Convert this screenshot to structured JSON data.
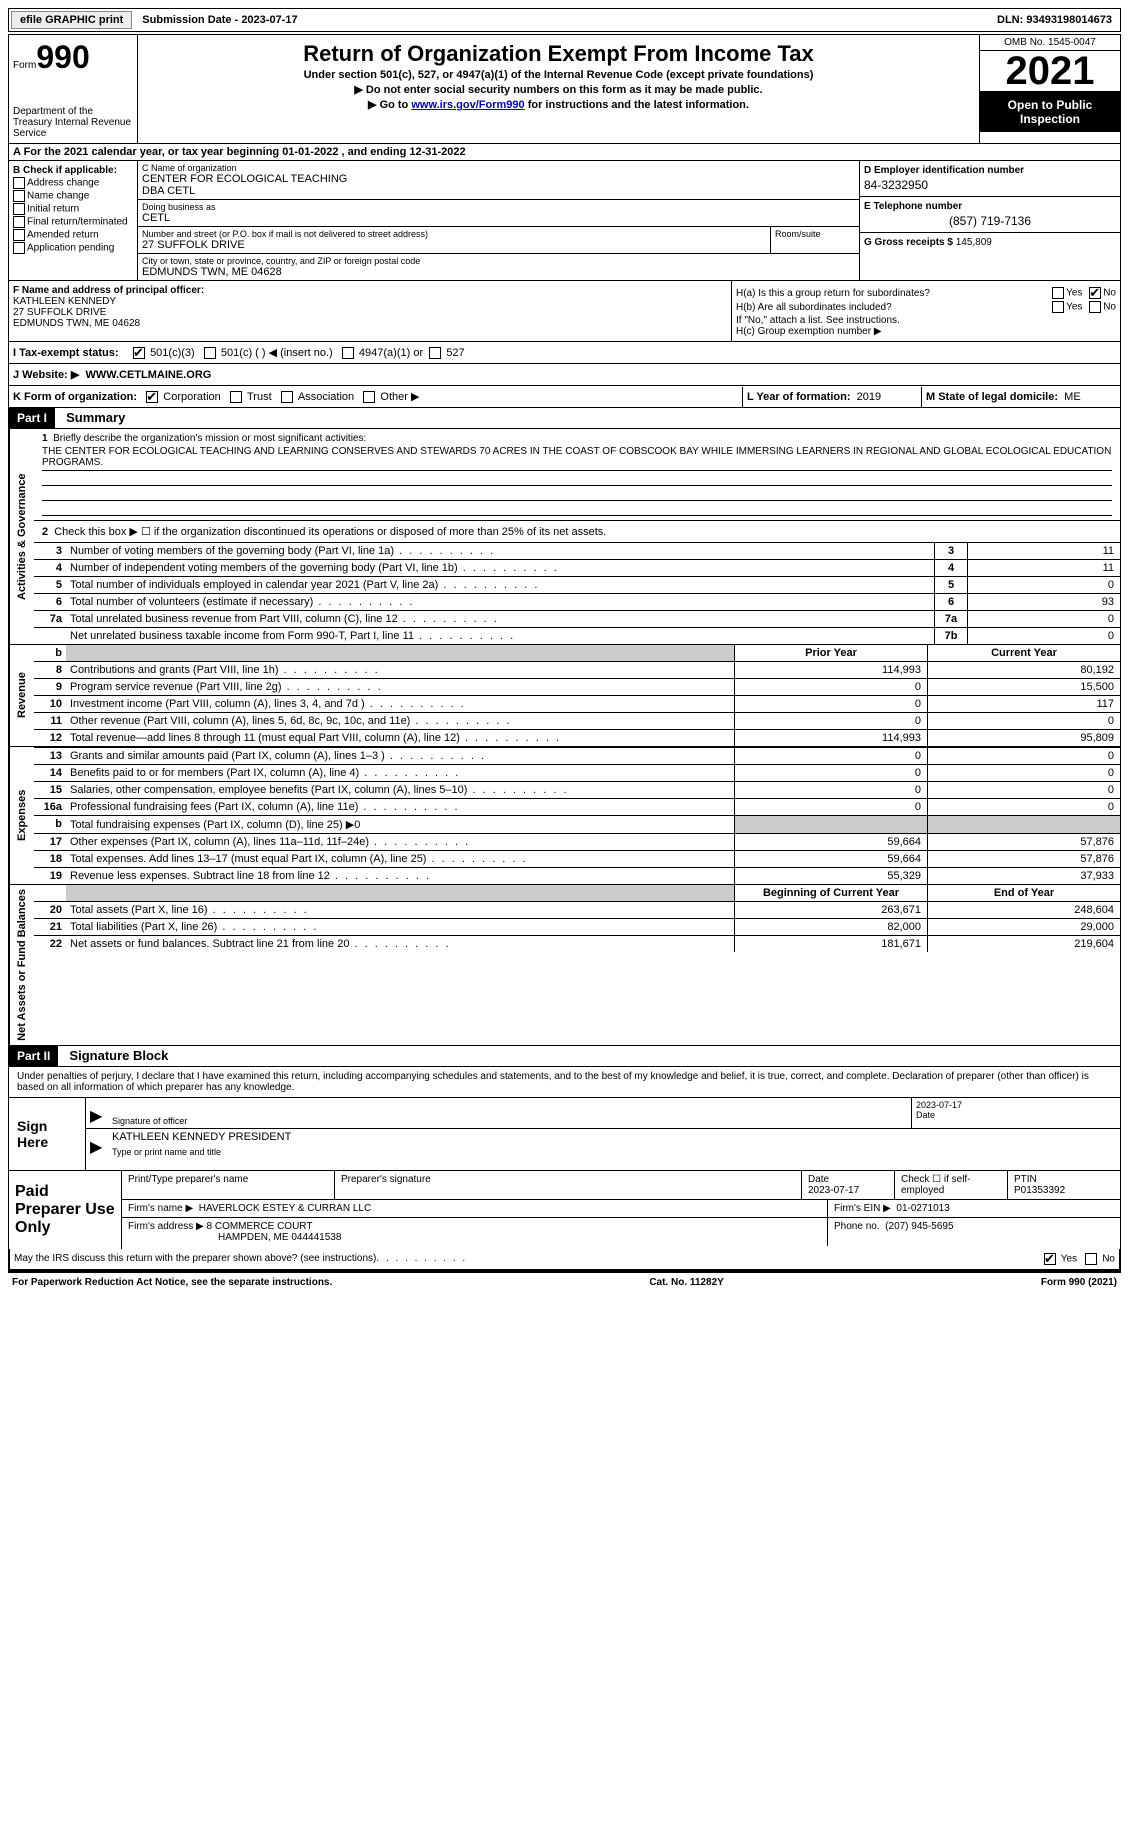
{
  "top": {
    "efile_label": "efile GRAPHIC print",
    "submission_label": "Submission Date - 2023-07-17",
    "dln_label": "DLN: 93493198014673"
  },
  "header": {
    "form_label": "Form",
    "form_number": "990",
    "dept": "Department of the Treasury Internal Revenue Service",
    "title": "Return of Organization Exempt From Income Tax",
    "sub1": "Under section 501(c), 527, or 4947(a)(1) of the Internal Revenue Code (except private foundations)",
    "sub2": "▶ Do not enter social security numbers on this form as it may be made public.",
    "sub3_pre": "▶ Go to ",
    "sub3_link": "www.irs.gov/Form990",
    "sub3_post": " for instructions and the latest information.",
    "omb": "OMB No. 1545-0047",
    "year": "2021",
    "open_insp": "Open to Public Inspection"
  },
  "rowA": "A For the 2021 calendar year, or tax year beginning 01-01-2022   , and ending 12-31-2022",
  "sectionB": {
    "label": "B Check if applicable:",
    "items": [
      "Address change",
      "Name change",
      "Initial return",
      "Final return/terminated",
      "Amended return",
      "Application pending"
    ]
  },
  "sectionC": {
    "name_label": "C Name of organization",
    "name": "CENTER FOR ECOLOGICAL TEACHING",
    "name2": "DBA CETL",
    "dba_label": "Doing business as",
    "dba": "CETL",
    "street_label": "Number and street (or P.O. box if mail is not delivered to street address)",
    "street": "27 SUFFOLK DRIVE",
    "room_label": "Room/suite",
    "city_label": "City or town, state or province, country, and ZIP or foreign postal code",
    "city": "EDMUNDS TWN, ME  04628"
  },
  "sectionD": {
    "ein_label": "D Employer identification number",
    "ein": "84-3232950",
    "phone_label": "E Telephone number",
    "phone": "(857) 719-7136",
    "gross_label": "G Gross receipts $",
    "gross": "145,809"
  },
  "sectionF": {
    "label": "F  Name and address of principal officer:",
    "name": "KATHLEEN KENNEDY",
    "street": "27 SUFFOLK DRIVE",
    "city": "EDMUNDS TWN, ME  04628"
  },
  "sectionH": {
    "ha": "H(a)  Is this a group return for subordinates?",
    "hb": "H(b)  Are all subordinates included?",
    "hb_note": "If \"No,\" attach a list. See instructions.",
    "hc": "H(c)  Group exemption number ▶",
    "yes": "Yes",
    "no": "No"
  },
  "rowI": {
    "label": "I   Tax-exempt status:",
    "opts": [
      "501(c)(3)",
      "501(c) (  ) ◀ (insert no.)",
      "4947(a)(1) or",
      "527"
    ]
  },
  "rowJ": {
    "label": "J   Website: ▶",
    "value": "WWW.CETLMAINE.ORG"
  },
  "rowK": {
    "label": "K Form of organization:",
    "opts": [
      "Corporation",
      "Trust",
      "Association",
      "Other ▶"
    ],
    "l_label": "L Year of formation:",
    "l_value": "2019",
    "m_label": "M State of legal domicile:",
    "m_value": "ME"
  },
  "part1": {
    "header": "Part I",
    "title": "Summary",
    "side1": "Activities & Governance",
    "side2": "Revenue",
    "side3": "Expenses",
    "side4": "Net Assets or Fund Balances",
    "line1_label": "Briefly describe the organization's mission or most significant activities:",
    "mission": "THE CENTER FOR ECOLOGICAL TEACHING AND LEARNING CONSERVES AND STEWARDS 70 ACRES IN THE COAST OF COBSCOOK BAY WHILE IMMERSING LEARNERS IN REGIONAL AND GLOBAL ECOLOGICAL EDUCATION PROGRAMS.",
    "line2": "Check this box ▶ ☐  if the organization discontinued its operations or disposed of more than 25% of its net assets.",
    "rows_single": [
      {
        "n": "3",
        "desc": "Number of voting members of the governing body (Part VI, line 1a)",
        "box": "3",
        "val": "11"
      },
      {
        "n": "4",
        "desc": "Number of independent voting members of the governing body (Part VI, line 1b)",
        "box": "4",
        "val": "11"
      },
      {
        "n": "5",
        "desc": "Total number of individuals employed in calendar year 2021 (Part V, line 2a)",
        "box": "5",
        "val": "0"
      },
      {
        "n": "6",
        "desc": "Total number of volunteers (estimate if necessary)",
        "box": "6",
        "val": "93"
      },
      {
        "n": "7a",
        "desc": "Total unrelated business revenue from Part VIII, column (C), line 12",
        "box": "7a",
        "val": "0"
      },
      {
        "n": "",
        "desc": "Net unrelated business taxable income from Form 990-T, Part I, line 11",
        "box": "7b",
        "val": "0"
      }
    ],
    "header_prior": "Prior Year",
    "header_current": "Current Year",
    "revenue_rows": [
      {
        "n": "8",
        "desc": "Contributions and grants (Part VIII, line 1h)",
        "prior": "114,993",
        "current": "80,192"
      },
      {
        "n": "9",
        "desc": "Program service revenue (Part VIII, line 2g)",
        "prior": "0",
        "current": "15,500"
      },
      {
        "n": "10",
        "desc": "Investment income (Part VIII, column (A), lines 3, 4, and 7d )",
        "prior": "0",
        "current": "117"
      },
      {
        "n": "11",
        "desc": "Other revenue (Part VIII, column (A), lines 5, 6d, 8c, 9c, 10c, and 11e)",
        "prior": "0",
        "current": "0"
      },
      {
        "n": "12",
        "desc": "Total revenue—add lines 8 through 11 (must equal Part VIII, column (A), line 12)",
        "prior": "114,993",
        "current": "95,809"
      }
    ],
    "expense_rows": [
      {
        "n": "13",
        "desc": "Grants and similar amounts paid (Part IX, column (A), lines 1–3 )",
        "prior": "0",
        "current": "0"
      },
      {
        "n": "14",
        "desc": "Benefits paid to or for members (Part IX, column (A), line 4)",
        "prior": "0",
        "current": "0"
      },
      {
        "n": "15",
        "desc": "Salaries, other compensation, employee benefits (Part IX, column (A), lines 5–10)",
        "prior": "0",
        "current": "0"
      },
      {
        "n": "16a",
        "desc": "Professional fundraising fees (Part IX, column (A), line 11e)",
        "prior": "0",
        "current": "0"
      },
      {
        "n": "b",
        "desc": "Total fundraising expenses (Part IX, column (D), line 25) ▶0",
        "prior": "grey",
        "current": "grey"
      },
      {
        "n": "17",
        "desc": "Other expenses (Part IX, column (A), lines 11a–11d, 11f–24e)",
        "prior": "59,664",
        "current": "57,876"
      },
      {
        "n": "18",
        "desc": "Total expenses. Add lines 13–17 (must equal Part IX, column (A), line 25)",
        "prior": "59,664",
        "current": "57,876"
      },
      {
        "n": "19",
        "desc": "Revenue less expenses. Subtract line 18 from line 12",
        "prior": "55,329",
        "current": "37,933"
      }
    ],
    "header_begin": "Beginning of Current Year",
    "header_end": "End of Year",
    "net_rows": [
      {
        "n": "20",
        "desc": "Total assets (Part X, line 16)",
        "prior": "263,671",
        "current": "248,604"
      },
      {
        "n": "21",
        "desc": "Total liabilities (Part X, line 26)",
        "prior": "82,000",
        "current": "29,000"
      },
      {
        "n": "22",
        "desc": "Net assets or fund balances. Subtract line 21 from line 20",
        "prior": "181,671",
        "current": "219,604"
      }
    ]
  },
  "part2": {
    "header": "Part II",
    "title": "Signature Block",
    "declaration": "Under penalties of perjury, I declare that I have examined this return, including accompanying schedules and statements, and to the best of my knowledge and belief, it is true, correct, and complete. Declaration of preparer (other than officer) is based on all information of which preparer has any knowledge.",
    "sign_here": "Sign Here",
    "sig_officer_label": "Signature of officer",
    "sig_date": "2023-07-17",
    "sig_date_label": "Date",
    "officer_name": "KATHLEEN KENNEDY PRESIDENT",
    "officer_name_label": "Type or print name and title",
    "paid_label": "Paid Preparer Use Only",
    "prep_name_label": "Print/Type preparer's name",
    "prep_sig_label": "Preparer's signature",
    "prep_date_label": "Date",
    "prep_date": "2023-07-17",
    "check_if_label": "Check ☐ if self-employed",
    "ptin_label": "PTIN",
    "ptin": "P01353392",
    "firm_name_label": "Firm's name    ▶",
    "firm_name": "HAVERLOCK ESTEY & CURRAN LLC",
    "firm_ein_label": "Firm's EIN ▶",
    "firm_ein": "01-0271013",
    "firm_addr_label": "Firm's address ▶",
    "firm_addr1": "8 COMMERCE COURT",
    "firm_addr2": "HAMPDEN, ME  044441538",
    "firm_phone_label": "Phone no.",
    "firm_phone": "(207) 945-5695",
    "discuss": "May the IRS discuss this return with the preparer shown above? (see instructions)",
    "yes": "Yes",
    "no": "No"
  },
  "footer": {
    "paperwork": "For Paperwork Reduction Act Notice, see the separate instructions.",
    "cat": "Cat. No. 11282Y",
    "form": "Form 990 (2021)"
  }
}
